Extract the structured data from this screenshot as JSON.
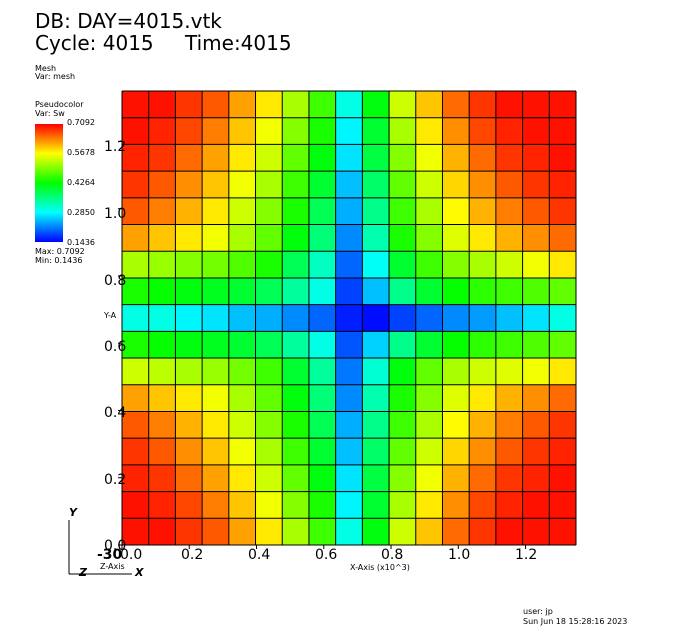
{
  "header": {
    "db_label": "DB: DAY=4015.vtk",
    "cycle_label": "Cycle: 4015",
    "time_label": "Time:4015"
  },
  "mesh_legend": {
    "title": "Mesh",
    "var": "Var: mesh"
  },
  "color_legend": {
    "title": "Pseudocolor",
    "var": "Var: Sw",
    "tick_labels": [
      "0.7092",
      "0.5678",
      "0.4264",
      "0.2850",
      "0.1436"
    ],
    "max_label": "Max:  0.7092",
    "min_label": "Min:  0.1436"
  },
  "axes": {
    "x_tick_labels": [
      "0.0",
      "0.2",
      "0.4",
      "0.6",
      "0.8",
      "1.0",
      "1.2"
    ],
    "y_tick_labels": [
      "0.0",
      "0.2",
      "0.4",
      "0.6",
      "0.8",
      "1.0",
      "1.2"
    ],
    "x_title": "X-Axis (x10^3)",
    "y_title": "Y-A",
    "z_overlap_label": "-30",
    "z_title": "Z-Axis",
    "triad_y": "Y",
    "triad_z": "Z",
    "triad_x": "X"
  },
  "footer": {
    "user": "user: jp",
    "date": "Sun Jun 18 15:28:16 2023"
  },
  "chart_data": {
    "type": "heatmap",
    "variable": "Sw",
    "x_range": [
      0.0,
      1.35
    ],
    "y_range": [
      0.0,
      1.35
    ],
    "x_tick_values": [
      0.0,
      0.2,
      0.4,
      0.6,
      0.8,
      1.0,
      1.2
    ],
    "y_tick_values": [
      0.0,
      0.2,
      0.4,
      0.6,
      0.8,
      1.0,
      1.2
    ],
    "color_range": [
      0.1436,
      0.7092
    ],
    "grid": true,
    "grid_rows_top_to_bottom": [
      [
        0.7,
        0.7,
        0.68,
        0.66,
        0.62,
        0.58,
        0.52,
        0.46,
        0.3,
        0.42,
        0.54,
        0.6,
        0.65,
        0.68,
        0.7,
        0.7,
        0.7
      ],
      [
        0.7,
        0.69,
        0.67,
        0.64,
        0.6,
        0.56,
        0.5,
        0.44,
        0.28,
        0.4,
        0.52,
        0.58,
        0.63,
        0.67,
        0.69,
        0.7,
        0.7
      ],
      [
        0.69,
        0.68,
        0.65,
        0.62,
        0.58,
        0.54,
        0.48,
        0.42,
        0.27,
        0.39,
        0.5,
        0.56,
        0.61,
        0.65,
        0.68,
        0.69,
        0.7
      ],
      [
        0.68,
        0.66,
        0.63,
        0.6,
        0.56,
        0.52,
        0.46,
        0.4,
        0.25,
        0.37,
        0.48,
        0.54,
        0.59,
        0.63,
        0.66,
        0.68,
        0.69
      ],
      [
        0.66,
        0.64,
        0.61,
        0.58,
        0.54,
        0.5,
        0.44,
        0.38,
        0.24,
        0.35,
        0.46,
        0.52,
        0.57,
        0.61,
        0.64,
        0.66,
        0.68
      ],
      [
        0.62,
        0.6,
        0.58,
        0.56,
        0.52,
        0.48,
        0.42,
        0.36,
        0.22,
        0.33,
        0.44,
        0.5,
        0.55,
        0.58,
        0.61,
        0.63,
        0.65
      ],
      [
        0.52,
        0.51,
        0.5,
        0.49,
        0.47,
        0.44,
        0.38,
        0.32,
        0.2,
        0.29,
        0.4,
        0.46,
        0.5,
        0.52,
        0.54,
        0.56,
        0.58
      ],
      [
        0.44,
        0.43,
        0.42,
        0.41,
        0.4,
        0.38,
        0.34,
        0.3,
        0.18,
        0.25,
        0.35,
        0.4,
        0.43,
        0.45,
        0.46,
        0.47,
        0.48
      ],
      [
        0.3,
        0.3,
        0.28,
        0.27,
        0.25,
        0.24,
        0.22,
        0.2,
        0.16,
        0.15,
        0.18,
        0.2,
        0.22,
        0.23,
        0.25,
        0.27,
        0.3
      ],
      [
        0.44,
        0.43,
        0.42,
        0.41,
        0.4,
        0.38,
        0.34,
        0.3,
        0.19,
        0.26,
        0.35,
        0.4,
        0.43,
        0.45,
        0.46,
        0.47,
        0.48
      ],
      [
        0.54,
        0.53,
        0.52,
        0.51,
        0.49,
        0.46,
        0.4,
        0.34,
        0.21,
        0.31,
        0.42,
        0.48,
        0.52,
        0.54,
        0.55,
        0.56,
        0.58
      ],
      [
        0.62,
        0.6,
        0.58,
        0.56,
        0.52,
        0.48,
        0.42,
        0.36,
        0.22,
        0.33,
        0.44,
        0.5,
        0.55,
        0.58,
        0.61,
        0.63,
        0.65
      ],
      [
        0.66,
        0.64,
        0.61,
        0.58,
        0.54,
        0.5,
        0.44,
        0.38,
        0.24,
        0.35,
        0.46,
        0.52,
        0.57,
        0.61,
        0.64,
        0.66,
        0.68
      ],
      [
        0.68,
        0.66,
        0.63,
        0.6,
        0.56,
        0.52,
        0.46,
        0.4,
        0.25,
        0.37,
        0.48,
        0.54,
        0.59,
        0.63,
        0.66,
        0.68,
        0.69
      ],
      [
        0.69,
        0.68,
        0.65,
        0.62,
        0.58,
        0.54,
        0.48,
        0.42,
        0.27,
        0.39,
        0.5,
        0.56,
        0.61,
        0.65,
        0.68,
        0.69,
        0.7
      ],
      [
        0.7,
        0.69,
        0.67,
        0.64,
        0.6,
        0.56,
        0.5,
        0.44,
        0.28,
        0.4,
        0.52,
        0.58,
        0.63,
        0.67,
        0.69,
        0.7,
        0.7
      ],
      [
        0.7,
        0.7,
        0.68,
        0.66,
        0.62,
        0.58,
        0.52,
        0.46,
        0.3,
        0.42,
        0.54,
        0.6,
        0.65,
        0.68,
        0.7,
        0.7,
        0.7
      ]
    ]
  }
}
